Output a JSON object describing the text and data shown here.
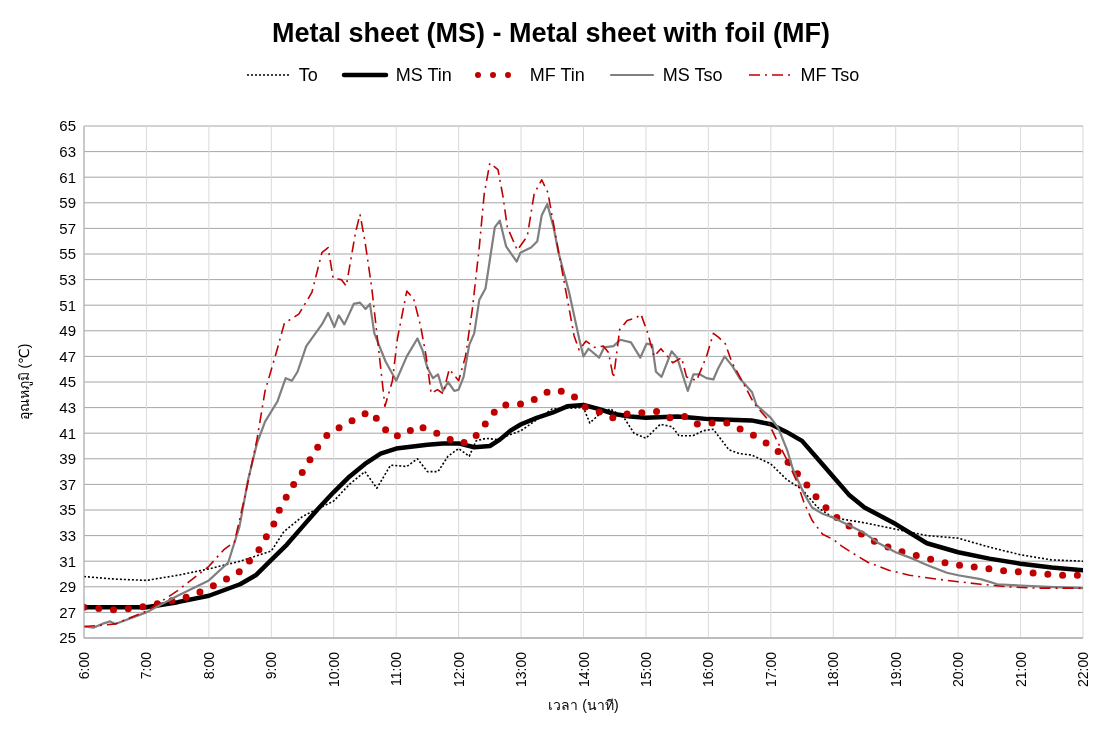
{
  "chart_data": {
    "type": "line",
    "title": "Metal sheet (MS) - Metal sheet with foil (MF)",
    "xlabel": "เวลา (นาที)",
    "ylabel": "อุณหภูมิ  (℃)",
    "legend": "top",
    "grid": true,
    "marker": "none",
    "xlim": [
      6,
      22
    ],
    "xticks": [
      {
        "value": 6,
        "label": "6:00"
      },
      {
        "value": 7,
        "label": "7:00"
      },
      {
        "value": 8,
        "label": "8:00"
      },
      {
        "value": 9,
        "label": "9:00"
      },
      {
        "value": 10,
        "label": "10:00"
      },
      {
        "value": 11,
        "label": "11:00"
      },
      {
        "value": 12,
        "label": "12:00"
      },
      {
        "value": 13,
        "label": "13:00"
      },
      {
        "value": 14,
        "label": "14:00"
      },
      {
        "value": 15,
        "label": "15:00"
      },
      {
        "value": 16,
        "label": "16:00"
      },
      {
        "value": 17,
        "label": "17:00"
      },
      {
        "value": 18,
        "label": "18:00"
      },
      {
        "value": 19,
        "label": "19:00"
      },
      {
        "value": 20,
        "label": "20:00"
      },
      {
        "value": 21,
        "label": "21:00"
      },
      {
        "value": 22,
        "label": "22:00"
      }
    ],
    "ylim": [
      25,
      65
    ],
    "yticks": [
      25,
      27,
      29,
      31,
      33,
      35,
      37,
      39,
      41,
      43,
      45,
      47,
      49,
      51,
      53,
      55,
      57,
      59,
      61,
      63,
      65
    ],
    "series": [
      {
        "name": "To",
        "color": "#000000",
        "line_style": "dotted",
        "x": [
          6,
          6.5,
          7,
          7.5,
          8,
          8.5,
          9,
          9.2,
          9.5,
          10,
          10.25,
          10.5,
          10.69,
          10.91,
          11.17,
          11.34,
          11.5,
          11.67,
          11.83,
          12,
          12.17,
          12.28,
          12.44,
          12.61,
          13,
          13.5,
          14,
          14.1,
          14.26,
          14.43,
          14.65,
          14.81,
          15,
          15.23,
          15.42,
          15.53,
          15.75,
          15.92,
          16.08,
          16.33,
          16.5,
          16.69,
          17,
          17.25,
          17.5,
          17.75,
          18,
          18.5,
          19,
          19.5,
          20,
          20.5,
          21,
          21.5,
          22
        ],
        "values": [
          29.8,
          29.6,
          29.5,
          29.9,
          30.4,
          31.0,
          31.8,
          33.3,
          34.5,
          35.7,
          37.0,
          38.0,
          36.7,
          38.5,
          38.4,
          39.0,
          38.0,
          38.0,
          39.2,
          39.8,
          39.2,
          40.4,
          40.6,
          40.5,
          41.2,
          42.9,
          43.0,
          41.8,
          42.5,
          42.9,
          42.2,
          41.0,
          40.6,
          41.7,
          41.5,
          40.8,
          40.8,
          41.2,
          41.3,
          39.7,
          39.4,
          39.3,
          38.6,
          37.4,
          36.6,
          35.2,
          34.4,
          34.0,
          33.5,
          33.0,
          32.8,
          32.1,
          31.5,
          31.1,
          31.0
        ]
      },
      {
        "name": "MS Tin",
        "color": "#000000",
        "line_style": "solid",
        "x": [
          6,
          7,
          7.5,
          8,
          8.5,
          8.75,
          9,
          9.25,
          9.5,
          9.75,
          10,
          10.25,
          10.5,
          10.75,
          11,
          11.5,
          11.75,
          12,
          12.25,
          12.5,
          12.66,
          12.83,
          13,
          13.25,
          13.5,
          13.74,
          14,
          14.24,
          14.49,
          14.75,
          15,
          15.5,
          15.75,
          16,
          16.69,
          17,
          17.25,
          17.5,
          17.75,
          18,
          18.25,
          18.5,
          19,
          19.5,
          20,
          20.5,
          21,
          21.5,
          22
        ],
        "values": [
          27.4,
          27.4,
          27.8,
          28.3,
          29.2,
          29.9,
          31.1,
          32.3,
          33.7,
          35.1,
          36.4,
          37.6,
          38.6,
          39.4,
          39.8,
          40.1,
          40.2,
          40.2,
          39.9,
          40.0,
          40.5,
          41.2,
          41.7,
          42.2,
          42.6,
          43.1,
          43.2,
          42.9,
          42.5,
          42.3,
          42.2,
          42.3,
          42.2,
          42.1,
          42.0,
          41.7,
          41.1,
          40.4,
          39.0,
          37.6,
          36.2,
          35.2,
          33.9,
          32.4,
          31.7,
          31.2,
          30.8,
          30.5,
          30.3
        ]
      },
      {
        "name": "MF Tin",
        "color": "#c00000",
        "line_style": "dotted",
        "x": [
          6,
          6.26,
          6.51,
          6.77,
          7.03,
          7.27,
          7.52,
          7.76,
          8,
          8.23,
          8.45,
          8.63,
          8.79,
          8.92,
          9.04,
          9.13,
          9.25,
          9.37,
          9.52,
          9.64,
          9.78,
          9.94,
          10.17,
          10.37,
          10.58,
          10.75,
          10.9,
          11.12,
          11.33,
          11.56,
          11.78,
          12,
          12.21,
          12.38,
          12.51,
          12.67,
          12.89,
          13.14,
          13.35,
          13.57,
          13.82,
          14,
          14.23,
          14.47,
          14.69,
          14.92,
          15.17,
          15.38,
          15.63,
          15.83,
          16.08,
          16.33,
          16.56,
          16.78,
          17,
          17.19,
          17.34,
          17.51,
          17.66,
          17.82,
          18,
          18.21,
          18.42,
          18.64,
          18.88,
          19.12,
          19.36,
          19.61,
          19.86,
          20.12,
          20.38,
          20.63,
          20.88,
          21.14,
          21.4,
          21.65,
          21.91
        ],
        "values": [
          27.4,
          27.3,
          27.2,
          27.3,
          27.5,
          27.8,
          28.0,
          28.4,
          28.9,
          29.5,
          30.0,
          30.9,
          31.8,
          32.9,
          33.9,
          35.0,
          36.1,
          37.1,
          38.1,
          39.1,
          40.2,
          41.1,
          41.6,
          42.2,
          42.7,
          41.8,
          40.8,
          40.8,
          41.6,
          41.2,
          40.7,
          40.2,
          40.4,
          41.4,
          42.3,
          43.2,
          43.2,
          43.4,
          44.1,
          44.4,
          44.0,
          43.1,
          42.7,
          42.2,
          42.5,
          42.6,
          42.7,
          42.2,
          42.3,
          41.7,
          41.8,
          41.8,
          41.2,
          40.7,
          40.0,
          39.3,
          38.3,
          37.4,
          36.4,
          35.5,
          34.6,
          33.9,
          33.2,
          32.6,
          32.1,
          31.7,
          31.4,
          31.1,
          30.8,
          30.6,
          30.5,
          30.3,
          30.2,
          30.1,
          30.0,
          29.9,
          29.9
        ]
      },
      {
        "name": "MS Tso",
        "color": "#7f7f7f",
        "line_style": "solid",
        "x": [
          6,
          6.15,
          6.29,
          6.42,
          6.5,
          7,
          7.5,
          8,
          8.31,
          8.49,
          8.63,
          8.77,
          8.9,
          9.1,
          9.23,
          9.33,
          9.42,
          9.56,
          9.81,
          9.91,
          10.01,
          10.08,
          10.17,
          10.32,
          10.42,
          10.51,
          10.58,
          10.65,
          10.83,
          11,
          11.17,
          11.34,
          11.42,
          11.5,
          11.59,
          11.67,
          11.75,
          11.83,
          11.93,
          12,
          12.08,
          12.17,
          12.25,
          12.33,
          12.43,
          12.58,
          12.66,
          12.76,
          12.93,
          12.99,
          13.16,
          13.26,
          13.33,
          13.42,
          13.52,
          13.6,
          13.77,
          13.93,
          14,
          14.08,
          14.25,
          14.33,
          14.48,
          14.59,
          14.76,
          14.91,
          15.01,
          15.1,
          15.16,
          15.25,
          15.41,
          15.5,
          15.67,
          15.76,
          15.86,
          15.97,
          16.08,
          16.16,
          16.26,
          16.39,
          16.5,
          16.7,
          16.77,
          17,
          17.12,
          17.26,
          17.36,
          17.53,
          17.66,
          17.83,
          18,
          18.25,
          18.5,
          18.73,
          19,
          19.27,
          19.5,
          19.82,
          20,
          20.36,
          20.63,
          21,
          21.45,
          22
        ],
        "values": [
          25.9,
          25.8,
          26.1,
          26.3,
          26.1,
          27.0,
          28.3,
          29.5,
          30.9,
          33.7,
          37.4,
          40.2,
          41.9,
          43.5,
          45.3,
          45.1,
          45.8,
          47.8,
          49.5,
          50.4,
          49.3,
          50.2,
          49.5,
          51.1,
          51.2,
          50.7,
          51.1,
          48.8,
          46.6,
          45.1,
          47.0,
          48.4,
          47.5,
          46.1,
          45.3,
          45.6,
          44.3,
          45.0,
          44.3,
          44.4,
          45.4,
          47.9,
          48.8,
          51.4,
          52.3,
          57.1,
          57.6,
          55.6,
          54.4,
          55.1,
          55.5,
          56.0,
          58.0,
          58.9,
          57.1,
          55.1,
          52.0,
          48.4,
          47.0,
          47.6,
          46.9,
          47.7,
          47.8,
          48.3,
          48.1,
          46.9,
          48.0,
          47.9,
          45.8,
          45.4,
          47.4,
          46.9,
          44.3,
          45.6,
          45.6,
          45.3,
          45.2,
          46.1,
          47.0,
          46.2,
          45.3,
          44.2,
          43.2,
          42.2,
          41.4,
          39.7,
          38.1,
          36.3,
          35.2,
          34.7,
          34.4,
          33.8,
          33.2,
          32.4,
          31.7,
          31.2,
          30.7,
          30.1,
          29.9,
          29.6,
          29.2,
          29.1,
          29.0,
          28.9
        ]
      },
      {
        "name": "MF Tso",
        "color": "#c00000",
        "line_style": "dashed",
        "x": [
          6,
          6.29,
          6.5,
          7,
          7.5,
          8,
          8.24,
          8.41,
          8.57,
          8.77,
          8.9,
          9.08,
          9.21,
          9.44,
          9.65,
          9.81,
          9.91,
          9.99,
          10.12,
          10.2,
          10.35,
          10.42,
          10.5,
          10.61,
          10.72,
          10.82,
          10.94,
          11.02,
          11.17,
          11.28,
          11.39,
          11.48,
          11.56,
          11.66,
          11.75,
          11.85,
          12,
          12.11,
          12.22,
          12.33,
          12.41,
          12.5,
          12.63,
          12.71,
          12.78,
          12.94,
          13.1,
          13.21,
          13.33,
          13.43,
          13.54,
          13.71,
          13.85,
          13.93,
          14.04,
          14.18,
          14.32,
          14.4,
          14.48,
          14.58,
          14.7,
          14.84,
          14.92,
          15.03,
          15.13,
          15.24,
          15.43,
          15.57,
          15.65,
          15.81,
          15.97,
          16.08,
          16.16,
          16.27,
          16.38,
          16.55,
          16.7,
          16.77,
          16.93,
          17.09,
          17.26,
          17.42,
          17.53,
          17.66,
          17.83,
          18,
          18.13,
          18.32,
          18.56,
          18.89,
          19.22,
          19.65,
          20,
          20.36,
          20.8,
          21.23,
          21.72,
          22
        ],
        "values": [
          25.9,
          26.0,
          26.1,
          27.1,
          28.7,
          30.6,
          31.9,
          32.5,
          35.9,
          40.5,
          44.3,
          47.3,
          49.6,
          50.3,
          52.0,
          55.1,
          55.5,
          53.1,
          53.0,
          52.5,
          56.7,
          58.1,
          56.0,
          52.3,
          47.5,
          43.1,
          45.1,
          48.4,
          52.1,
          51.5,
          49.4,
          47.0,
          44.1,
          44.4,
          44.1,
          46.0,
          45.1,
          47.0,
          50.7,
          55.5,
          59.7,
          62.1,
          61.6,
          59.5,
          57.1,
          55.3,
          56.4,
          59.7,
          60.8,
          59.8,
          56.8,
          52.3,
          48.6,
          47.5,
          48.2,
          47.7,
          47.8,
          47.3,
          45.3,
          49.1,
          49.8,
          50.0,
          50.3,
          48.8,
          47.0,
          47.6,
          46.5,
          46.9,
          45.4,
          45.1,
          47.0,
          48.8,
          48.5,
          48.0,
          46.5,
          45.0,
          43.6,
          43.1,
          42.2,
          40.5,
          38.9,
          37.2,
          35.6,
          34.2,
          33.1,
          32.7,
          32.2,
          31.6,
          30.9,
          30.3,
          29.9,
          29.6,
          29.4,
          29.2,
          29.0,
          28.9,
          28.9,
          28.9
        ]
      }
    ]
  }
}
